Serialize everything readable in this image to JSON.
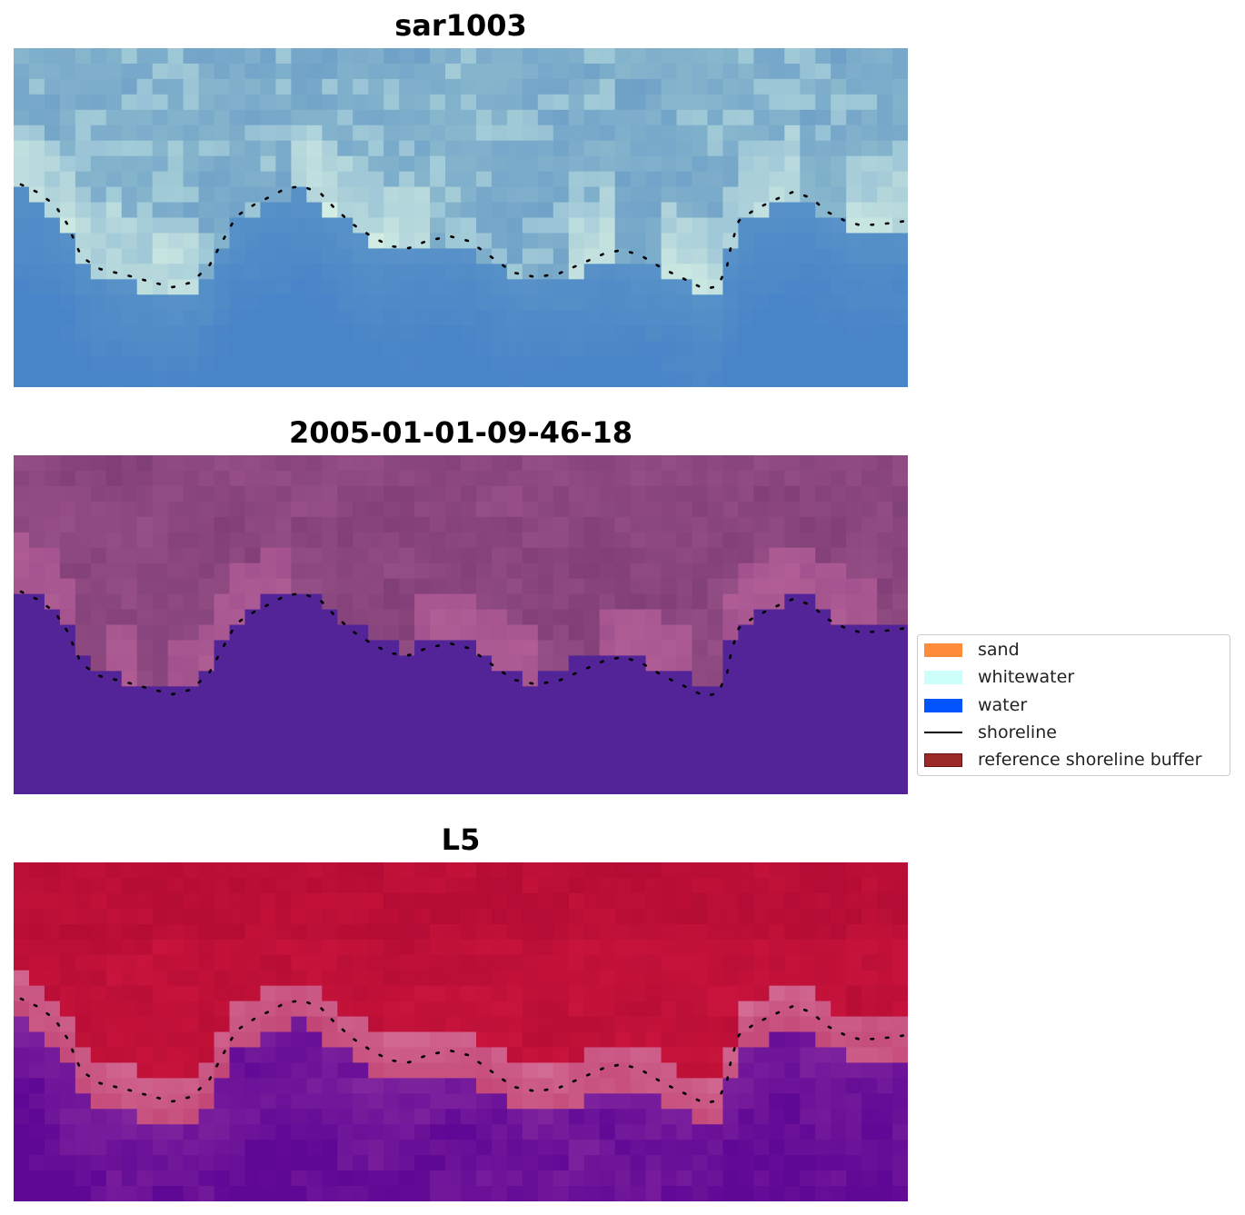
{
  "panels": [
    {
      "title": "sar1003"
    },
    {
      "title": "2005-01-01-09-46-18"
    },
    {
      "title": "L5"
    }
  ],
  "legend": {
    "items": [
      {
        "label": "sand",
        "color": "#ff8c3a",
        "kind": "patch"
      },
      {
        "label": "whitewater",
        "color": "#ccfffa",
        "kind": "patch"
      },
      {
        "label": "water",
        "color": "#0055ff",
        "kind": "patch"
      },
      {
        "label": "shoreline",
        "color": "#000000",
        "kind": "line"
      },
      {
        "label": "reference shoreline buffer",
        "color": "#9b2a2a",
        "kind": "patch"
      }
    ]
  }
}
